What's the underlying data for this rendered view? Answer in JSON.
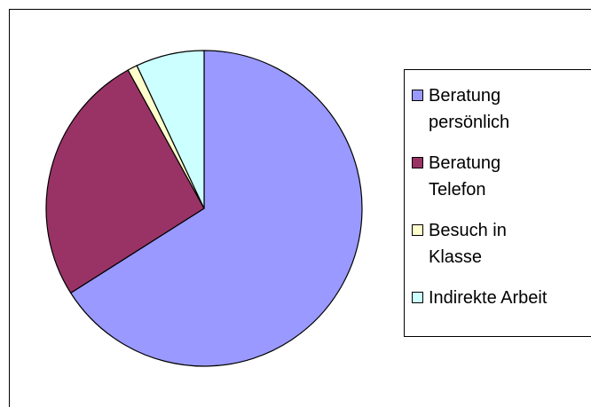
{
  "chart_data": {
    "type": "pie",
    "categories": [
      "Beratung persönlich",
      "Beratung Telefon",
      "Besuch in Klasse",
      "Indirekte Arbeit"
    ],
    "values": [
      66,
      26,
      1,
      7
    ],
    "colors": [
      "#9999ff",
      "#993366",
      "#ffffcc",
      "#ccffff"
    ],
    "legend": "right"
  }
}
